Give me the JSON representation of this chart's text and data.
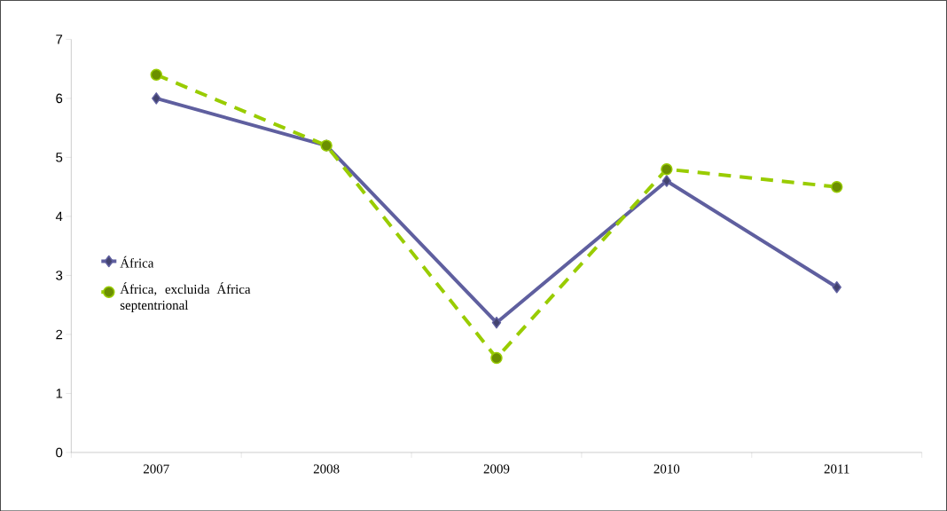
{
  "chart_data": {
    "type": "line",
    "categories": [
      "2007",
      "2008",
      "2009",
      "2010",
      "2011"
    ],
    "series": [
      {
        "name": "África",
        "color": "#5f5f9f",
        "marker": "diamond",
        "line_style": "solid",
        "values": [
          6.0,
          5.2,
          2.2,
          4.6,
          2.8
        ]
      },
      {
        "name": "África, excluida África septentrional",
        "color": "#99cc00",
        "marker": "circle",
        "line_style": "dashed",
        "values": [
          6.4,
          5.2,
          1.6,
          4.8,
          4.5
        ]
      }
    ],
    "ylim": [
      0,
      7
    ],
    "yticks": [
      0,
      1,
      2,
      3,
      4,
      5,
      6,
      7
    ],
    "legend": "left"
  }
}
